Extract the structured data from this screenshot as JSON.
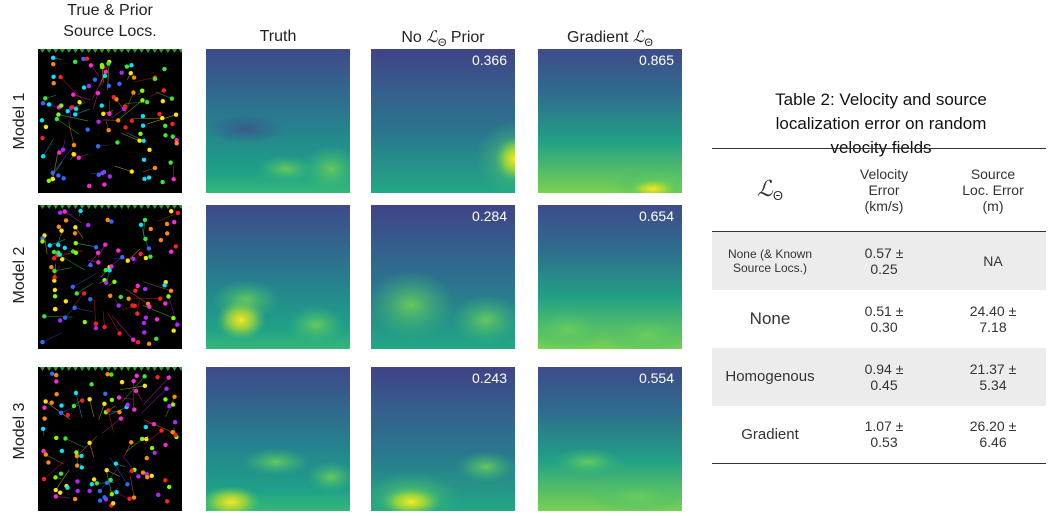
{
  "columns": {
    "source_locs_line1": "True & Prior",
    "source_locs_line2": "Source Locs.",
    "truth": "Truth",
    "no_prior_pre": "No ",
    "no_prior_symbol": "ℒ",
    "no_prior_sub": "Θ",
    "no_prior_post": " Prior",
    "gradient_pre": "Gradient ",
    "gradient_symbol": "ℒ",
    "gradient_sub": "Θ"
  },
  "rows": [
    {
      "label": "Model 1",
      "no_prior_score": "0.366",
      "gradient_score": "0.865"
    },
    {
      "label": "Model 2",
      "no_prior_score": "0.284",
      "gradient_score": "0.654"
    },
    {
      "label": "Model 3",
      "no_prior_score": "0.243",
      "gradient_score": "0.554"
    }
  ],
  "table": {
    "title_line1": "Table 2: Velocity and source",
    "title_line2": "localization error on random",
    "title_line3": "velocity fields",
    "header_symbol": "ℒ",
    "header_sub": "Θ",
    "header_velocity": [
      "Velocity",
      "Error",
      "(km/s)"
    ],
    "header_source": [
      "Source",
      "Loc. Error",
      "(m)"
    ],
    "body": [
      {
        "name_line1": "None (& Known",
        "name_line2": "Source Locs.)",
        "vel_line1": "0.57 ±",
        "vel_line2": "0.25",
        "src": "NA"
      },
      {
        "name": "None",
        "vel_line1": "0.51 ±",
        "vel_line2": "0.30",
        "src_line1": "24.40 ±",
        "src_line2": "7.18"
      },
      {
        "name": "Homogenous",
        "vel_line1": "0.94 ±",
        "vel_line2": "0.45",
        "src_line1": "21.37 ±",
        "src_line2": "5.34"
      },
      {
        "name": "Gradient",
        "vel_line1": "1.07 ±",
        "vel_line2": "0.53",
        "src_line1": "26.20 ±",
        "src_line2": "6.46"
      }
    ]
  },
  "colors": {
    "viridis_dark": "#46327e",
    "viridis_mid": "#277f8e",
    "viridis_green": "#4ac16d",
    "viridis_yellow": "#fde725",
    "station_marker": "#2ca02c"
  }
}
